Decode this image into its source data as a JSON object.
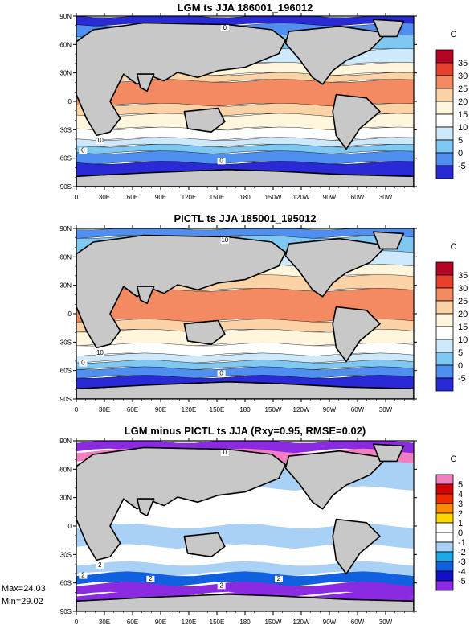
{
  "panels": [
    {
      "title": "LGM ts JJA 186001_196012",
      "unit": "C",
      "legend": [
        {
          "label": "35",
          "color": "#b40426"
        },
        {
          "label": "30",
          "color": "#e8402f"
        },
        {
          "label": "25",
          "color": "#f48a61"
        },
        {
          "label": "20",
          "color": "#fbd3a6"
        },
        {
          "label": "15",
          "color": "#fff6dd"
        },
        {
          "label": "10",
          "color": "#ffffff"
        },
        {
          "label": "5",
          "color": "#cde9fb"
        },
        {
          "label": "0",
          "color": "#7fc8f2"
        },
        {
          "label": "-5",
          "color": "#4f8ff0"
        },
        {
          "label": "",
          "color": "#2929d6"
        }
      ],
      "contour_labels": [
        "0",
        "10",
        "0",
        "0"
      ]
    },
    {
      "title": "PICTL ts JJA 185001_195012",
      "unit": "C",
      "legend": [
        {
          "label": "35",
          "color": "#b40426"
        },
        {
          "label": "30",
          "color": "#e8402f"
        },
        {
          "label": "25",
          "color": "#f48a61"
        },
        {
          "label": "20",
          "color": "#fbd3a6"
        },
        {
          "label": "15",
          "color": "#fff6dd"
        },
        {
          "label": "10",
          "color": "#ffffff"
        },
        {
          "label": "5",
          "color": "#cde9fb"
        },
        {
          "label": "0",
          "color": "#7fc8f2"
        },
        {
          "label": "-5",
          "color": "#4f8ff0"
        },
        {
          "label": "",
          "color": "#2929d6"
        }
      ],
      "contour_labels": [
        "10",
        "10",
        "0",
        "0"
      ]
    },
    {
      "title": "LGM minus PICTL ts JJA (Rxy=0.95, RMSE=0.02)",
      "unit": "C",
      "legend": [
        {
          "label": "5",
          "color": "#f07ec0"
        },
        {
          "label": "4",
          "color": "#d40000"
        },
        {
          "label": "3",
          "color": "#f02a00"
        },
        {
          "label": "2",
          "color": "#ff8a00"
        },
        {
          "label": "1",
          "color": "#ffd700"
        },
        {
          "label": "0",
          "color": "#ffffff"
        },
        {
          "label": "-1",
          "color": "#ffffff"
        },
        {
          "label": "-2",
          "color": "#a9d0f5"
        },
        {
          "label": "-3",
          "color": "#1ea8e8"
        },
        {
          "label": "-4",
          "color": "#1060e0"
        },
        {
          "label": "-5",
          "color": "#1010c8"
        },
        {
          "label": "",
          "color": "#8a2be2"
        }
      ],
      "contour_labels": [
        "0",
        "2",
        "2",
        "2",
        "2",
        "2"
      ],
      "stats": {
        "max": "Max=24.03",
        "min": "Min=29.02"
      }
    }
  ],
  "lat_ticks": [
    "90N",
    "60N",
    "30N",
    "0",
    "30S",
    "60S",
    "90S"
  ],
  "lon_ticks": [
    "0",
    "30E",
    "60E",
    "90E",
    "120E",
    "150E",
    "180",
    "150W",
    "120W",
    "90W",
    "60W",
    "30W"
  ],
  "colors": {
    "land": "#c8c8c8",
    "coast": "#000000"
  }
}
